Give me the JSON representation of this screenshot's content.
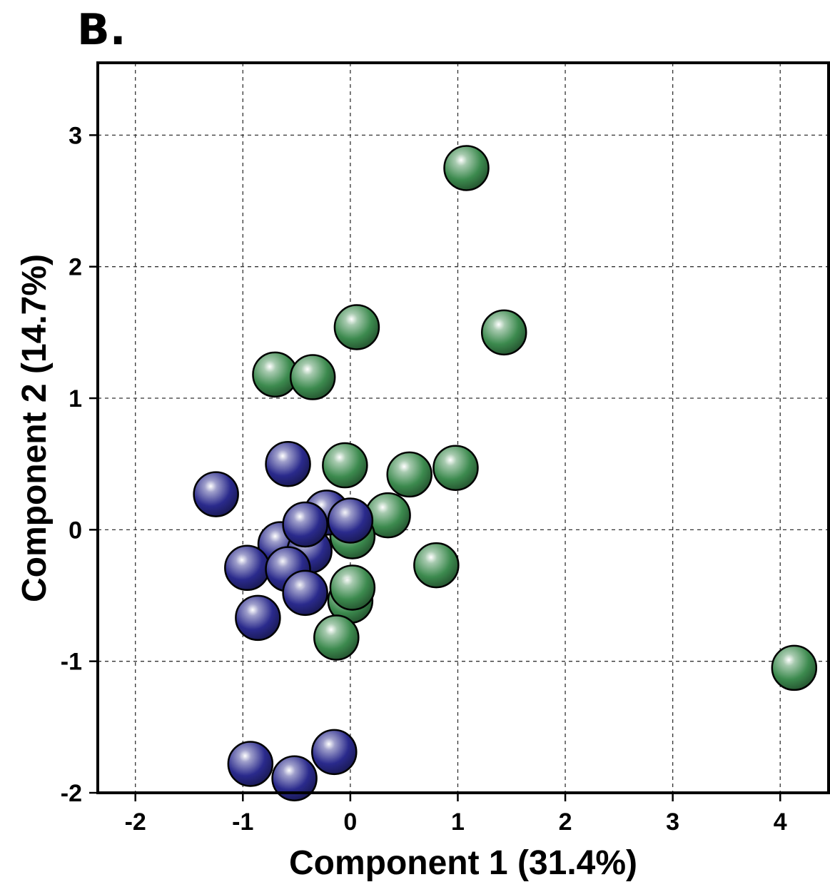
{
  "panel_label": "B.",
  "colors": {
    "green": "#3c8a4e",
    "blue": "#2a2a8c"
  },
  "chart_data": {
    "type": "scatter",
    "title": "",
    "xlabel": "Component 1 (31.4%)",
    "ylabel": "Component 2 (14.7%)",
    "xlim": [
      -2.35,
      4.45
    ],
    "ylim": [
      -2.0,
      3.55
    ],
    "x_ticks": [
      "-2",
      "-1",
      "0",
      "1",
      "2",
      "3",
      "4"
    ],
    "y_ticks": [
      "-2",
      "-1",
      "0",
      "1",
      "2",
      "3"
    ],
    "grid": true,
    "series": [
      {
        "color": "#3c8a4e",
        "points": [
          [
            1.08,
            2.75
          ],
          [
            0.06,
            1.54
          ],
          [
            1.43,
            1.5
          ],
          [
            -0.7,
            1.18
          ],
          [
            -0.35,
            1.16
          ],
          [
            -0.05,
            0.49
          ],
          [
            0.55,
            0.42
          ],
          [
            0.98,
            0.47
          ],
          [
            0.35,
            0.11
          ],
          [
            0.02,
            -0.05
          ],
          [
            0.8,
            -0.27
          ],
          [
            0.0,
            -0.54
          ],
          [
            0.02,
            -0.44
          ],
          [
            -0.13,
            -0.82
          ],
          [
            4.13,
            -1.05
          ]
        ]
      },
      {
        "color": "#2a2a8c",
        "points": [
          [
            -1.25,
            0.27
          ],
          [
            -0.58,
            0.5
          ],
          [
            -0.22,
            0.13
          ],
          [
            0.0,
            0.07
          ],
          [
            -0.65,
            -0.11
          ],
          [
            -0.38,
            -0.16
          ],
          [
            -0.42,
            0.04
          ],
          [
            -0.96,
            -0.29
          ],
          [
            -0.58,
            -0.3
          ],
          [
            -0.42,
            -0.48
          ],
          [
            -0.86,
            -0.67
          ],
          [
            -0.93,
            -1.78
          ],
          [
            -0.52,
            -1.89
          ],
          [
            -0.15,
            -1.69
          ]
        ]
      }
    ]
  }
}
